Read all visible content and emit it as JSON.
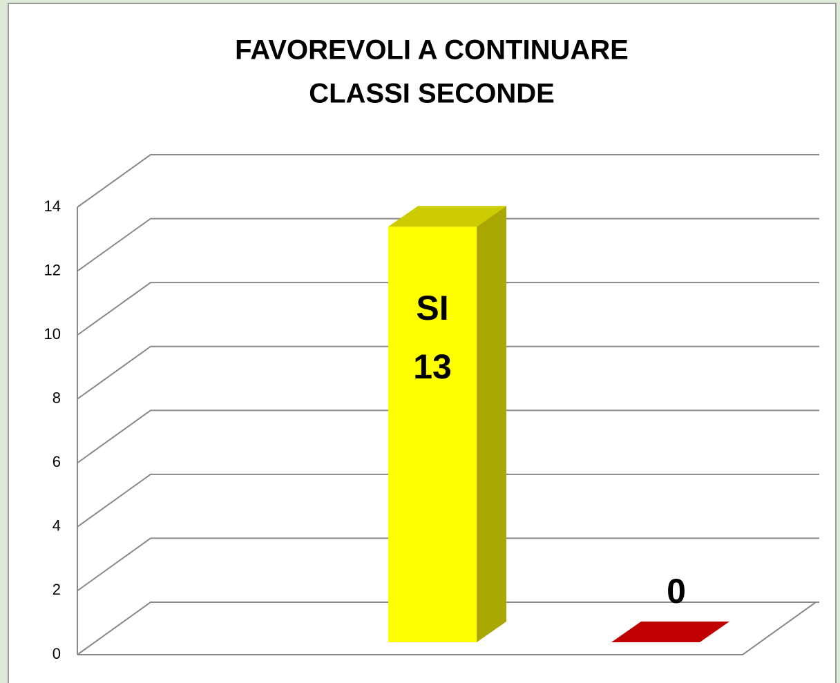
{
  "chart_data": {
    "type": "bar3d",
    "title": [
      "FAVOREVOLI A CONTINUARE",
      "CLASSI SECONDE"
    ],
    "categories": [
      "SI",
      null
    ],
    "values": [
      13,
      0
    ],
    "colors": [
      "#ffff00",
      "#c00000"
    ],
    "ylim": [
      0,
      14
    ],
    "yticks": [
      0,
      2,
      4,
      6,
      8,
      10,
      12,
      14
    ],
    "grid": true
  }
}
